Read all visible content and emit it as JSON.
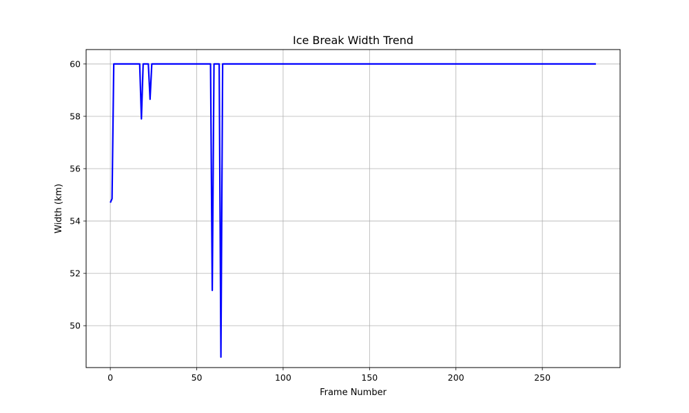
{
  "chart_data": {
    "type": "line",
    "title": "Ice Break Width Trend",
    "xlabel": "Frame Number",
    "ylabel": "Width (km)",
    "xlim": [
      -14,
      295
    ],
    "ylim": [
      48.4,
      60.55
    ],
    "xticks": [
      0,
      50,
      100,
      150,
      200,
      250
    ],
    "yticks": [
      50,
      52,
      54,
      56,
      58,
      60
    ],
    "grid": true,
    "series": [
      {
        "color": "#0000ff",
        "x": [
          0,
          1,
          2,
          3,
          17,
          18,
          19,
          22,
          23,
          24,
          25,
          58,
          59,
          60,
          63,
          64,
          65,
          66,
          281
        ],
        "y": [
          54.7,
          54.85,
          60.0,
          60.0,
          60.0,
          57.9,
          60.0,
          60.0,
          58.65,
          60.0,
          60.0,
          60.0,
          51.35,
          60.0,
          60.0,
          48.8,
          60.0,
          60.0,
          60.0
        ]
      }
    ]
  }
}
